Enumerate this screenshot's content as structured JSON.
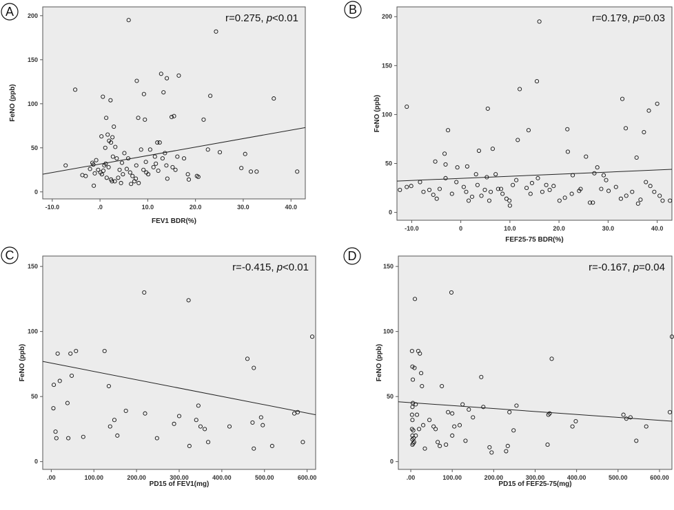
{
  "chart_data": [
    {
      "type": "scatter",
      "panel_label": "A",
      "stat_prefix": "r=0.275, ",
      "stat_p": "p",
      "stat_suffix": "<0.01",
      "xlabel": "FEV1 BDR(%)",
      "ylabel": "FeNO (ppb)",
      "xlim": [
        -12,
        43
      ],
      "ylim": [
        -8,
        210
      ],
      "x_ticks": [
        -10,
        0,
        10,
        20,
        30,
        40
      ],
      "x_tick_labels": [
        "-10.0",
        ".0",
        "10.0",
        "20.0",
        "30.0",
        "40.0"
      ],
      "y_ticks": [
        0,
        50,
        100,
        150,
        200
      ],
      "y_tick_labels": [
        "0",
        "50",
        "100",
        "150",
        "200"
      ],
      "fit_line": [
        [
          -12,
          20
        ],
        [
          43,
          73
        ]
      ],
      "grid": false,
      "points": [
        [
          6,
          195
        ],
        [
          24.3,
          182
        ],
        [
          7.7,
          126
        ],
        [
          12.8,
          134
        ],
        [
          14,
          129
        ],
        [
          16.5,
          132
        ],
        [
          -5.2,
          116
        ],
        [
          13.3,
          113
        ],
        [
          9.2,
          111
        ],
        [
          0.6,
          108
        ],
        [
          2.2,
          104
        ],
        [
          23.1,
          109
        ],
        [
          36.4,
          106
        ],
        [
          15,
          85
        ],
        [
          15.5,
          86
        ],
        [
          8,
          84
        ],
        [
          9.4,
          82
        ],
        [
          21.7,
          82
        ],
        [
          1.3,
          84
        ],
        [
          2.9,
          74
        ],
        [
          0.3,
          63
        ],
        [
          1.6,
          65
        ],
        [
          2.6,
          62
        ],
        [
          1.9,
          58
        ],
        [
          2.3,
          56
        ],
        [
          12,
          56
        ],
        [
          12.5,
          56
        ],
        [
          1.1,
          50
        ],
        [
          3.2,
          51
        ],
        [
          -7.2,
          30
        ],
        [
          -3.7,
          19
        ],
        [
          -3,
          18
        ],
        [
          -1.6,
          33
        ],
        [
          -1.4,
          31
        ],
        [
          -1.1,
          21
        ],
        [
          -1.3,
          7
        ],
        [
          -0.4,
          25
        ],
        [
          0.1,
          22
        ],
        [
          0.4,
          20
        ],
        [
          0.7,
          24
        ],
        [
          1.4,
          16
        ],
        [
          1.8,
          28
        ],
        [
          2.3,
          14
        ],
        [
          2.5,
          12
        ],
        [
          3.1,
          12
        ],
        [
          3.5,
          38
        ],
        [
          4.1,
          25
        ],
        [
          4.6,
          33
        ],
        [
          5.1,
          44
        ],
        [
          5.6,
          26
        ],
        [
          5.9,
          38
        ],
        [
          6.3,
          22
        ],
        [
          6.8,
          18
        ],
        [
          7.2,
          12
        ],
        [
          7.6,
          30
        ],
        [
          8.1,
          10
        ],
        [
          8.6,
          48
        ],
        [
          9.1,
          25
        ],
        [
          9.6,
          34
        ],
        [
          10.1,
          20
        ],
        [
          10.5,
          48
        ],
        [
          11.2,
          28
        ],
        [
          11.7,
          32
        ],
        [
          12.2,
          24
        ],
        [
          13.1,
          38
        ],
        [
          13.6,
          44
        ],
        [
          14.1,
          15
        ],
        [
          15.2,
          28
        ],
        [
          16.2,
          40
        ],
        [
          17.6,
          38
        ],
        [
          18.4,
          20
        ],
        [
          18.6,
          14
        ],
        [
          20.3,
          18
        ],
        [
          20.6,
          17
        ],
        [
          22.6,
          48
        ],
        [
          25.1,
          45
        ],
        [
          29.6,
          27
        ],
        [
          30.4,
          43
        ],
        [
          31.6,
          23
        ],
        [
          32.8,
          23
        ],
        [
          41.3,
          23
        ],
        [
          -0.8,
          36
        ],
        [
          0.9,
          30
        ],
        [
          2.7,
          40
        ],
        [
          3.8,
          16
        ],
        [
          4.4,
          10
        ],
        [
          6.5,
          9
        ],
        [
          7.5,
          15
        ],
        [
          11.5,
          40
        ],
        [
          13.9,
          30
        ],
        [
          15.8,
          25
        ],
        [
          -2.1,
          26
        ],
        [
          1.2,
          32
        ],
        [
          4.8,
          20
        ],
        [
          9.7,
          22
        ]
      ]
    },
    {
      "type": "scatter",
      "panel_label": "B",
      "stat_prefix": "r=0.179, ",
      "stat_p": "p",
      "stat_suffix": "=0.03",
      "xlabel": "FEF25-75 BDR(%)",
      "ylabel": "FeNO (ppb)",
      "xlim": [
        -13,
        43
      ],
      "ylim": [
        -8,
        210
      ],
      "x_ticks": [
        -10,
        0,
        10,
        20,
        30,
        40
      ],
      "x_tick_labels": [
        "-10.0",
        "0",
        "10.0",
        "20.0",
        "30.0",
        "40.0"
      ],
      "y_ticks": [
        0,
        50,
        100,
        150,
        200
      ],
      "y_tick_labels": [
        "0",
        "50",
        "100",
        "150",
        "200"
      ],
      "fit_line": [
        [
          -13,
          32
        ],
        [
          43,
          44
        ]
      ],
      "grid": false,
      "points": [
        [
          16,
          195
        ],
        [
          -11,
          108
        ],
        [
          15.5,
          134
        ],
        [
          12,
          126
        ],
        [
          5.5,
          106
        ],
        [
          32.9,
          116
        ],
        [
          40,
          111
        ],
        [
          38.3,
          104
        ],
        [
          -2.6,
          84
        ],
        [
          13.8,
          84
        ],
        [
          21.7,
          85
        ],
        [
          33.6,
          86
        ],
        [
          37.3,
          82
        ],
        [
          11.6,
          74
        ],
        [
          3.7,
          63
        ],
        [
          6.5,
          65
        ],
        [
          21.8,
          62
        ],
        [
          25.5,
          57
        ],
        [
          35.8,
          56
        ],
        [
          -3.3,
          60
        ],
        [
          -5.2,
          52
        ],
        [
          -3.1,
          49
        ],
        [
          -0.7,
          46
        ],
        [
          1.3,
          47
        ],
        [
          3.1,
          39
        ],
        [
          5.3,
          36
        ],
        [
          7.1,
          39
        ],
        [
          -12.4,
          23
        ],
        [
          -11,
          26
        ],
        [
          -10.1,
          27
        ],
        [
          -8.3,
          31
        ],
        [
          -7.6,
          21
        ],
        [
          -6.4,
          23
        ],
        [
          -5.6,
          18
        ],
        [
          -4.3,
          24
        ],
        [
          -3.1,
          35
        ],
        [
          -1.8,
          19
        ],
        [
          -0.9,
          31
        ],
        [
          0.6,
          26
        ],
        [
          1.1,
          21
        ],
        [
          2.3,
          16
        ],
        [
          3.4,
          28
        ],
        [
          4.2,
          17
        ],
        [
          4.9,
          23
        ],
        [
          6.1,
          21
        ],
        [
          7.6,
          24
        ],
        [
          8.5,
          19
        ],
        [
          9.3,
          14
        ],
        [
          9.9,
          12
        ],
        [
          10.6,
          28
        ],
        [
          11.3,
          33
        ],
        [
          13.4,
          25
        ],
        [
          14.2,
          19
        ],
        [
          15.7,
          35
        ],
        [
          16.6,
          21
        ],
        [
          18.1,
          23
        ],
        [
          18.9,
          27
        ],
        [
          20.1,
          12
        ],
        [
          21.2,
          15
        ],
        [
          22.6,
          19
        ],
        [
          24.1,
          22
        ],
        [
          24.4,
          24
        ],
        [
          26.3,
          10
        ],
        [
          26.9,
          10
        ],
        [
          27.2,
          40
        ],
        [
          28.6,
          24
        ],
        [
          29.1,
          38
        ],
        [
          29.6,
          33
        ],
        [
          30.1,
          22
        ],
        [
          31.6,
          26
        ],
        [
          32.6,
          14
        ],
        [
          33.7,
          17
        ],
        [
          34.9,
          21
        ],
        [
          36.1,
          9
        ],
        [
          36.6,
          13
        ],
        [
          37.7,
          31
        ],
        [
          38.6,
          27
        ],
        [
          39.4,
          21
        ],
        [
          41.1,
          12
        ],
        [
          42.6,
          12
        ],
        [
          1.6,
          12
        ],
        [
          10,
          7
        ],
        [
          5.8,
          12
        ],
        [
          17.4,
          28
        ],
        [
          22.8,
          38
        ],
        [
          -4.9,
          14
        ],
        [
          8.2,
          24
        ],
        [
          14.5,
          30
        ],
        [
          27.8,
          46
        ],
        [
          40.5,
          17
        ]
      ]
    },
    {
      "type": "scatter",
      "panel_label": "C",
      "stat_prefix": "r=-0.415, ",
      "stat_p": "p",
      "stat_suffix": "<0.01",
      "xlabel": "PD15 of FEV1(mg)",
      "ylabel": "FeNO (ppb)",
      "xlim": [
        -20,
        620
      ],
      "ylim": [
        -6,
        158
      ],
      "x_ticks": [
        0,
        100,
        200,
        300,
        400,
        500,
        600
      ],
      "x_tick_labels": [
        ".00",
        "100.00",
        "200.00",
        "300.00",
        "400.00",
        "500.00",
        "600.00"
      ],
      "y_ticks": [
        0,
        50,
        100,
        150
      ],
      "y_tick_labels": [
        "0",
        "50",
        "100",
        "150"
      ],
      "fit_line": [
        [
          -20,
          77
        ],
        [
          620,
          36
        ]
      ],
      "grid": false,
      "points": [
        [
          5,
          41
        ],
        [
          6,
          59
        ],
        [
          10,
          23
        ],
        [
          12,
          18
        ],
        [
          15,
          83
        ],
        [
          20,
          62
        ],
        [
          38,
          45
        ],
        [
          40,
          18
        ],
        [
          45,
          83
        ],
        [
          48,
          66
        ],
        [
          58,
          85
        ],
        [
          75,
          19
        ],
        [
          125,
          85
        ],
        [
          135,
          58
        ],
        [
          138,
          27
        ],
        [
          148,
          32
        ],
        [
          155,
          20
        ],
        [
          175,
          39
        ],
        [
          218,
          130
        ],
        [
          220,
          37
        ],
        [
          248,
          18
        ],
        [
          288,
          29
        ],
        [
          300,
          35
        ],
        [
          322,
          124
        ],
        [
          324,
          12
        ],
        [
          340,
          32
        ],
        [
          345,
          43
        ],
        [
          350,
          27
        ],
        [
          360,
          25
        ],
        [
          368,
          15
        ],
        [
          418,
          27
        ],
        [
          460,
          79
        ],
        [
          472,
          30
        ],
        [
          475,
          72
        ],
        [
          475,
          10
        ],
        [
          492,
          34
        ],
        [
          496,
          28
        ],
        [
          518,
          12
        ],
        [
          570,
          37
        ],
        [
          578,
          38
        ],
        [
          590,
          15
        ],
        [
          612,
          96
        ]
      ]
    },
    {
      "type": "scatter",
      "panel_label": "D",
      "stat_prefix": "r=-0.167, ",
      "stat_p": "p",
      "stat_suffix": "=0.04",
      "xlabel": "PD15 of FEF25-75(mg)",
      "ylabel": "FeNO (ppb)",
      "xlim": [
        -30,
        630
      ],
      "ylim": [
        -6,
        158
      ],
      "x_ticks": [
        0,
        100,
        200,
        300,
        400,
        500,
        600
      ],
      "x_tick_labels": [
        ".00",
        "100.00",
        "200.00",
        "300.00",
        "400.00",
        "500.00",
        "600.00"
      ],
      "y_ticks": [
        0,
        50,
        100,
        150
      ],
      "y_tick_labels": [
        "0",
        "50",
        "100",
        "150"
      ],
      "fit_line": [
        [
          -30,
          46
        ],
        [
          630,
          31
        ]
      ],
      "grid": false,
      "points": [
        [
          3,
          85
        ],
        [
          4,
          73
        ],
        [
          5,
          63
        ],
        [
          5,
          45
        ],
        [
          4,
          42
        ],
        [
          3,
          36
        ],
        [
          4,
          32
        ],
        [
          3,
          25
        ],
        [
          4,
          20
        ],
        [
          4,
          17
        ],
        [
          4,
          13
        ],
        [
          6,
          14
        ],
        [
          7,
          18
        ],
        [
          8,
          15
        ],
        [
          9,
          72
        ],
        [
          10,
          125
        ],
        [
          12,
          44
        ],
        [
          15,
          36
        ],
        [
          18,
          85
        ],
        [
          20,
          25
        ],
        [
          22,
          83
        ],
        [
          25,
          68
        ],
        [
          27,
          58
        ],
        [
          30,
          28
        ],
        [
          34,
          10
        ],
        [
          45,
          32
        ],
        [
          60,
          25
        ],
        [
          65,
          15
        ],
        [
          70,
          12
        ],
        [
          75,
          58
        ],
        [
          85,
          13
        ],
        [
          98,
          130
        ],
        [
          100,
          37
        ],
        [
          100,
          20
        ],
        [
          105,
          27
        ],
        [
          118,
          28
        ],
        [
          125,
          44
        ],
        [
          132,
          16
        ],
        [
          140,
          40
        ],
        [
          150,
          34
        ],
        [
          170,
          65
        ],
        [
          175,
          42
        ],
        [
          190,
          11
        ],
        [
          195,
          7
        ],
        [
          230,
          8
        ],
        [
          234,
          12
        ],
        [
          238,
          38
        ],
        [
          248,
          24
        ],
        [
          255,
          43
        ],
        [
          330,
          13
        ],
        [
          332,
          36
        ],
        [
          335,
          37
        ],
        [
          340,
          79
        ],
        [
          390,
          27
        ],
        [
          398,
          31
        ],
        [
          513,
          36
        ],
        [
          520,
          33
        ],
        [
          530,
          34
        ],
        [
          544,
          16
        ],
        [
          568,
          27
        ],
        [
          625,
          38
        ],
        [
          630,
          96
        ],
        [
          6,
          24
        ],
        [
          12,
          20
        ],
        [
          55,
          27
        ],
        [
          90,
          38
        ]
      ]
    }
  ]
}
